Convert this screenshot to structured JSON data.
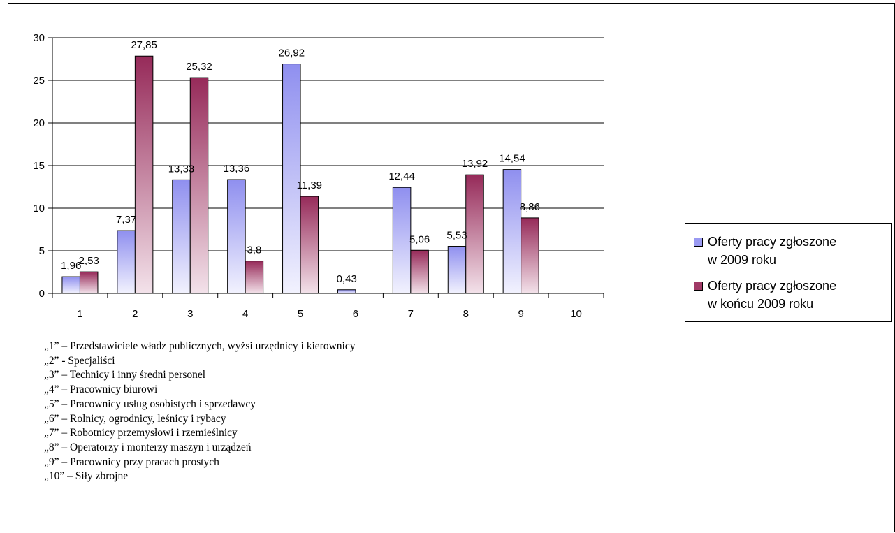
{
  "chart_data": {
    "type": "bar",
    "categories": [
      "1",
      "2",
      "3",
      "4",
      "5",
      "6",
      "7",
      "8",
      "9",
      "10"
    ],
    "series": [
      {
        "name": "Oferty pracy zgłoszone w  2009 roku",
        "values": [
          1.96,
          7.37,
          13.33,
          13.36,
          26.92,
          0.43,
          12.44,
          5.53,
          14.54,
          null
        ],
        "labels": [
          "1,96",
          "7,37",
          "13,33",
          "13,36",
          "26,92",
          "0,43",
          "12,44",
          "5,53",
          "14,54",
          ""
        ],
        "color": "#8f8fef"
      },
      {
        "name": "Oferty pracy zgłoszone w  końcu 2009 roku",
        "values": [
          2.53,
          27.85,
          25.32,
          3.8,
          11.39,
          null,
          5.06,
          13.92,
          8.86,
          null
        ],
        "labels": [
          "2,53",
          "27,85",
          "25,32",
          "3,8",
          "11,39",
          "",
          "5,06",
          "13,92",
          "8,86",
          ""
        ],
        "color": "#9b2d5e"
      }
    ],
    "ylim": [
      0,
      30
    ],
    "yticks": [
      "0",
      "5",
      "10",
      "15",
      "20",
      "25",
      "30"
    ],
    "grid": true,
    "legend_position": "right"
  },
  "legend": {
    "items": [
      {
        "line1": "Oferty pracy zgłoszone",
        "line2": "w  2009 roku",
        "color": "#9a9af2"
      },
      {
        "line1": "Oferty pracy zgłoszone",
        "line2": "w  końcu 2009 roku",
        "color": "#a03a66"
      }
    ]
  },
  "notes": [
    "„1” – Przedstawiciele władz publicznych, wyżsi urzędnicy i kierownicy",
    "„2” - Specjaliści",
    "„3” – Technicy i inny średni personel",
    "„4” – Pracownicy biurowi",
    "„5” – Pracownicy usług osobistych i sprzedawcy",
    "„6” – Rolnicy, ogrodnicy, leśnicy i rybacy",
    "„7” – Robotnicy przemysłowi i rzemieślnicy",
    "„8” – Operatorzy i monterzy maszyn i urządzeń",
    "„9” – Pracownicy przy pracach prostych",
    "„10” – Siły zbrojne"
  ]
}
